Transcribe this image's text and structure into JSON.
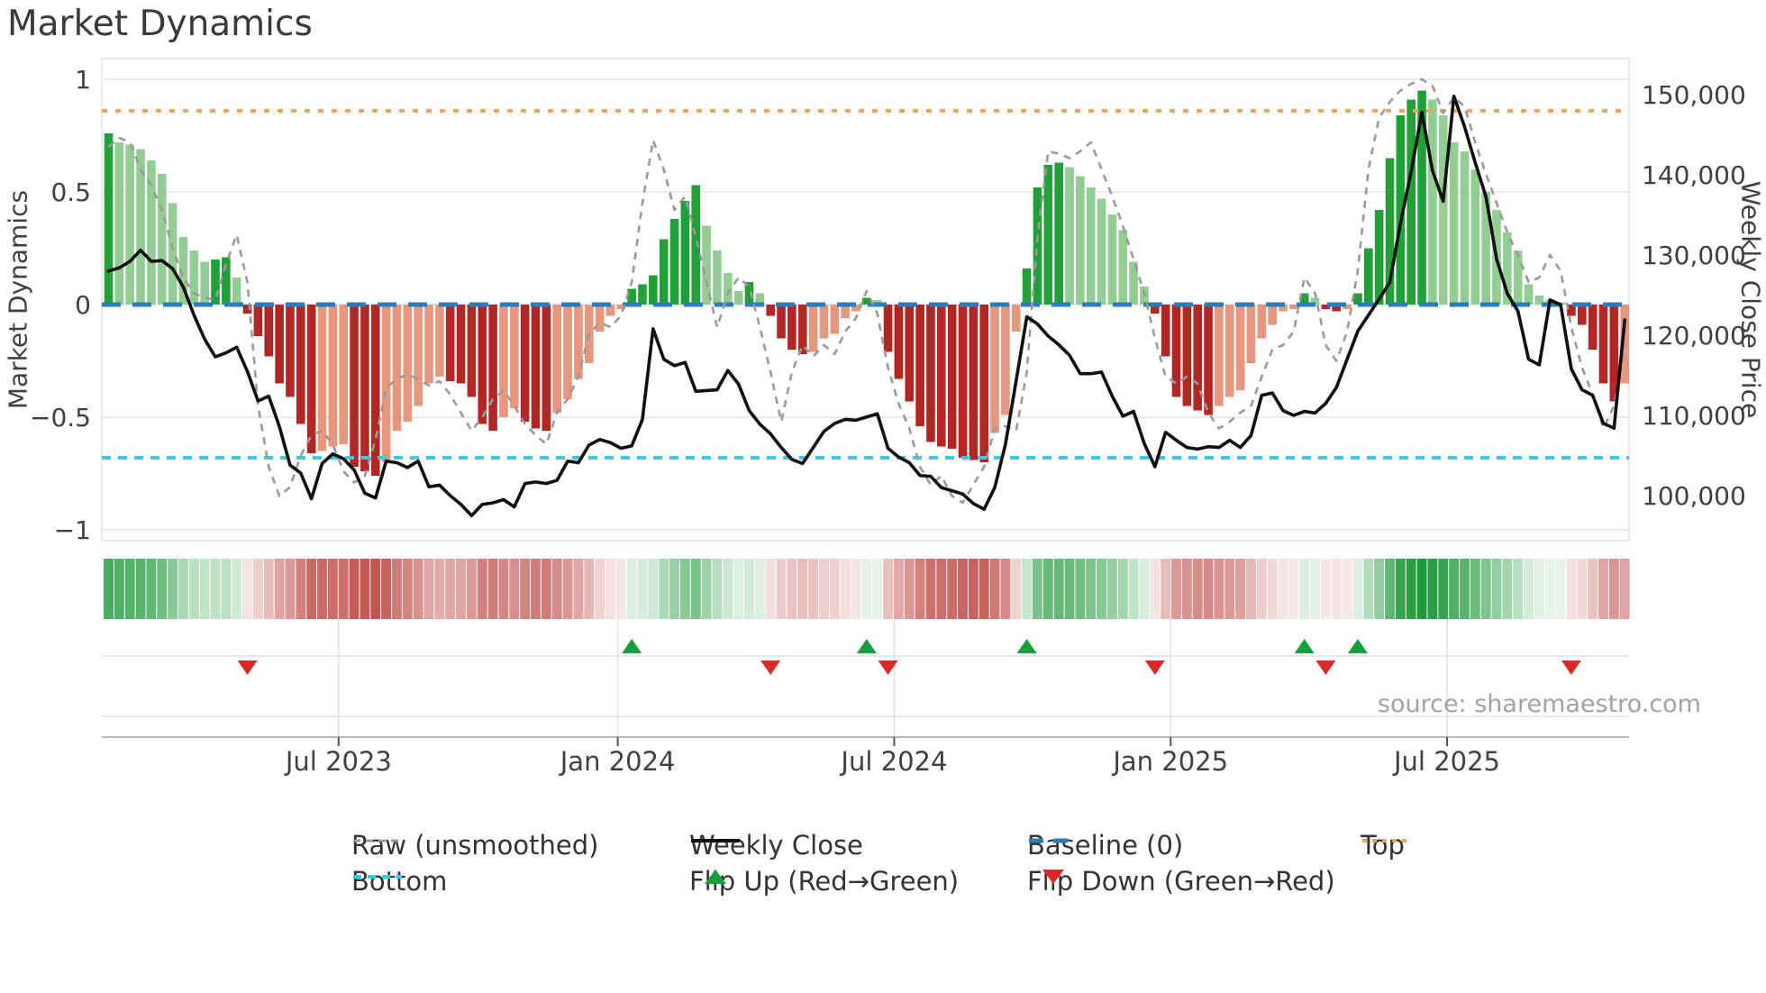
{
  "title": "Market Dynamics",
  "source": "source: sharemaestro.com",
  "left_axis": {
    "label": "Market Dynamics",
    "tick_labels": [
      "1",
      "0.5",
      "0",
      "−0.5",
      "−1"
    ],
    "tick_values": [
      1,
      0.5,
      0,
      -0.5,
      -1
    ]
  },
  "right_axis": {
    "label": "Weekly Close Price",
    "tick_labels": [
      "150,000",
      "140,000",
      "130,000",
      "120,000",
      "110,000",
      "100,000"
    ],
    "tick_values": [
      150000,
      140000,
      130000,
      120000,
      110000,
      100000
    ]
  },
  "x_axis": {
    "tick_labels": [
      "Jul 2023",
      "Jan 2024",
      "Jul 2024",
      "Jan 2025",
      "Jul 2025"
    ],
    "tick_weeks": [
      21.55,
      47.69,
      73.58,
      99.47,
      125.36
    ]
  },
  "legend": [
    {
      "id": "raw",
      "label": "Raw (unsmoothed)",
      "swatch": "dash-gray",
      "row": 0,
      "col": 0
    },
    {
      "id": "close",
      "label": "Weekly Close",
      "swatch": "solid-black",
      "row": 0,
      "col": 1
    },
    {
      "id": "baseline",
      "label": "Baseline (0)",
      "swatch": "dash-blue",
      "row": 0,
      "col": 2
    },
    {
      "id": "top",
      "label": "Top",
      "swatch": "dot-orange",
      "row": 0,
      "col": 3
    },
    {
      "id": "bottom",
      "label": "Bottom",
      "swatch": "dash-cyan",
      "row": 1,
      "col": 0
    },
    {
      "id": "flip-up",
      "label": "Flip Up (Red→Green)",
      "swatch": "tri-up",
      "row": 1,
      "col": 1
    },
    {
      "id": "flip-down",
      "label": "Flip Down (Green→Red)",
      "swatch": "tri-down",
      "row": 1,
      "col": 2
    }
  ],
  "colors": {
    "bar_dark_green": "#21a038",
    "bar_light_green": "#93cd93",
    "bar_dark_red": "#b22724",
    "bar_light_red": "#e6977e",
    "heat_green": [
      34,
      154,
      60
    ],
    "heat_red": [
      180,
      48,
      42
    ],
    "baseline_blue": "#2b7cba",
    "top_orange": "#f2a45e",
    "bottom_cyan": "#3cc8e6",
    "raw_gray": "#9a9a9a",
    "close_black": "#101010",
    "flip_up_green": "#16a03c",
    "flip_down_red": "#d92b26",
    "grid": "#ebebef",
    "panel_line": "#e0e0e5",
    "axis_line": "#b9b9c0",
    "tick_text": "#3f3f46"
  },
  "chart_data": {
    "type": "combo",
    "weeks": 143,
    "ylim_left": [
      -1.07,
      1.09
    ],
    "ylim_right": [
      97000,
      155000
    ],
    "grid": "horizontal-only",
    "thresholds": {
      "top": 0.86,
      "baseline": 0,
      "bottom": -0.68
    },
    "flip_up_weeks": [
      49,
      71,
      86,
      112,
      117
    ],
    "flip_down_weeks": [
      13,
      62,
      73,
      98,
      114,
      137
    ],
    "series": [
      {
        "name": "Market Dynamics (smoothed bars)",
        "type": "bar",
        "axis": "left",
        "values": [
          0.76,
          0.72,
          0.71,
          0.69,
          0.64,
          0.58,
          0.45,
          0.3,
          0.24,
          0.19,
          0.2,
          0.21,
          0.12,
          -0.04,
          -0.14,
          -0.23,
          -0.35,
          -0.41,
          -0.53,
          -0.66,
          -0.65,
          -0.63,
          -0.62,
          -0.72,
          -0.74,
          -0.76,
          -0.7,
          -0.56,
          -0.52,
          -0.45,
          -0.35,
          -0.32,
          -0.34,
          -0.35,
          -0.41,
          -0.53,
          -0.56,
          -0.5,
          -0.46,
          -0.52,
          -0.55,
          -0.56,
          -0.48,
          -0.42,
          -0.33,
          -0.26,
          -0.12,
          -0.05,
          -0.02,
          0.07,
          0.09,
          0.13,
          0.29,
          0.38,
          0.46,
          0.53,
          0.35,
          0.24,
          0.14,
          0.06,
          0.1,
          0.05,
          -0.05,
          -0.15,
          -0.2,
          -0.22,
          -0.21,
          -0.15,
          -0.13,
          -0.06,
          -0.03,
          0.03,
          0.02,
          -0.21,
          -0.33,
          -0.43,
          -0.54,
          -0.61,
          -0.63,
          -0.64,
          -0.68,
          -0.69,
          -0.7,
          -0.57,
          -0.49,
          -0.12,
          0.16,
          0.52,
          0.62,
          0.63,
          0.61,
          0.57,
          0.52,
          0.47,
          0.4,
          0.33,
          0.19,
          0.08,
          -0.04,
          -0.23,
          -0.41,
          -0.45,
          -0.47,
          -0.49,
          -0.45,
          -0.41,
          -0.38,
          -0.26,
          -0.15,
          -0.09,
          -0.03,
          -0.02,
          0.05,
          0.03,
          -0.02,
          -0.03,
          -0.02,
          0.05,
          0.25,
          0.42,
          0.65,
          0.84,
          0.91,
          0.95,
          0.91,
          0.84,
          0.72,
          0.68,
          0.6,
          0.5,
          0.42,
          0.32,
          0.24,
          0.09,
          0.04,
          0.02,
          0.01,
          -0.05,
          -0.09,
          -0.2,
          -0.35,
          -0.43,
          -0.35
        ]
      },
      {
        "name": "Raw (unsmoothed)",
        "type": "line",
        "axis": "left",
        "values": [
          0.7,
          0.74,
          0.72,
          0.6,
          0.53,
          0.42,
          0.25,
          0.12,
          0.05,
          0.03,
          0.02,
          0.18,
          0.31,
          0.1,
          -0.45,
          -0.72,
          -0.85,
          -0.81,
          -0.67,
          -0.58,
          -0.56,
          -0.62,
          -0.74,
          -0.79,
          -0.76,
          -0.6,
          -0.37,
          -0.33,
          -0.31,
          -0.33,
          -0.36,
          -0.34,
          -0.4,
          -0.48,
          -0.56,
          -0.5,
          -0.42,
          -0.38,
          -0.45,
          -0.53,
          -0.58,
          -0.62,
          -0.48,
          -0.42,
          -0.32,
          -0.13,
          -0.08,
          -0.1,
          -0.05,
          0.1,
          0.45,
          0.73,
          0.6,
          0.42,
          0.48,
          0.3,
          0.1,
          -0.1,
          0.05,
          0.12,
          0.08,
          -0.1,
          -0.3,
          -0.52,
          -0.3,
          -0.18,
          -0.23,
          -0.18,
          -0.22,
          -0.12,
          -0.06,
          0.06,
          -0.04,
          -0.28,
          -0.44,
          -0.55,
          -0.72,
          -0.8,
          -0.76,
          -0.85,
          -0.88,
          -0.8,
          -0.72,
          -0.55,
          -0.54,
          -0.56,
          -0.3,
          0.3,
          0.68,
          0.67,
          0.65,
          0.68,
          0.72,
          0.6,
          0.48,
          0.35,
          0.2,
          0.05,
          -0.15,
          -0.32,
          -0.35,
          -0.32,
          -0.35,
          -0.48,
          -0.55,
          -0.52,
          -0.48,
          -0.45,
          -0.32,
          -0.2,
          -0.18,
          -0.12,
          0.12,
          0.05,
          -0.18,
          -0.25,
          -0.12,
          0.15,
          0.6,
          0.83,
          0.9,
          0.95,
          0.98,
          1.0,
          0.97,
          0.85,
          0.92,
          0.88,
          0.72,
          0.58,
          0.45,
          0.32,
          0.22,
          0.1,
          0.12,
          0.22,
          0.15,
          -0.1,
          -0.28,
          -0.4,
          -0.55,
          -0.45,
          -0.18
        ]
      },
      {
        "name": "Weekly Close",
        "type": "line",
        "axis": "right",
        "values": [
          128000,
          128400,
          129200,
          130600,
          129200,
          129300,
          128300,
          126000,
          122500,
          119500,
          117300,
          117800,
          118500,
          115500,
          111800,
          112400,
          108600,
          103800,
          102800,
          99600,
          104000,
          105200,
          104600,
          103200,
          100300,
          99700,
          104300,
          104100,
          103500,
          104300,
          101100,
          101300,
          100000,
          98900,
          97500,
          98900,
          99100,
          99500,
          98600,
          101500,
          101700,
          101500,
          101900,
          104300,
          104100,
          106300,
          107000,
          106600,
          105900,
          106200,
          109500,
          120800,
          117000,
          116200,
          116600,
          113000,
          113100,
          113200,
          115600,
          113900,
          110600,
          108900,
          107700,
          106000,
          104500,
          104000,
          106000,
          108000,
          109000,
          109500,
          109400,
          109800,
          110200,
          105900,
          104800,
          104100,
          102500,
          102400,
          101000,
          100600,
          100200,
          99000,
          98300,
          101000,
          106400,
          114300,
          122300,
          121400,
          119900,
          118800,
          117500,
          115200,
          115200,
          115400,
          112400,
          109900,
          110500,
          106500,
          103600,
          107900,
          106900,
          106000,
          105800,
          106100,
          106000,
          106900,
          106000,
          107500,
          112500,
          112800,
          110600,
          110000,
          110500,
          110300,
          111500,
          113500,
          117000,
          120500,
          122500,
          124500,
          126600,
          134000,
          140400,
          147800,
          140500,
          136700,
          149800,
          146000,
          141500,
          137300,
          129500,
          125200,
          123000,
          117000,
          116300,
          124400,
          123800,
          115800,
          113200,
          112500,
          109000,
          108400,
          121900
        ]
      }
    ]
  }
}
